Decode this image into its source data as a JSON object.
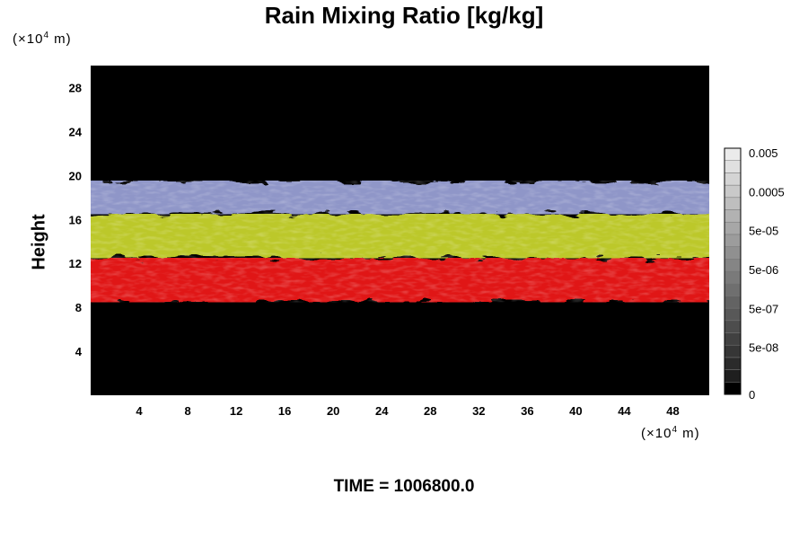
{
  "chart_data": {
    "type": "heatmap",
    "title": "Rain Mixing Ratio [kg/kg]",
    "ylabel": "Height",
    "x_unit": {
      "prefix": "(×10",
      "exp": "4",
      "suffix": " m)"
    },
    "y_unit": {
      "prefix": "(×10",
      "exp": "4",
      "suffix": " m)"
    },
    "annotation": "TIME = 1006800.0",
    "xlim": [
      0,
      51
    ],
    "ylim": [
      0,
      30
    ],
    "x_ticks": [
      4,
      8,
      12,
      16,
      20,
      24,
      28,
      32,
      36,
      40,
      44,
      48
    ],
    "y_ticks": [
      4,
      8,
      12,
      16,
      20,
      24,
      28
    ],
    "grid": false,
    "colorbar": {
      "placement": "right",
      "tick_labels": [
        "0.005",
        "0.0005",
        "5e-05",
        "5e-06",
        "5e-07",
        "5e-08",
        "0"
      ],
      "levels": 20
    },
    "layers": [
      {
        "y_bottom": 16.5,
        "y_top": 19.5,
        "color": "#8f96c8"
      },
      {
        "y_bottom": 12.5,
        "y_top": 16.5,
        "color": "#bcc82a"
      },
      {
        "y_bottom": 8.5,
        "y_top": 12.5,
        "color": "#e01818"
      }
    ]
  }
}
